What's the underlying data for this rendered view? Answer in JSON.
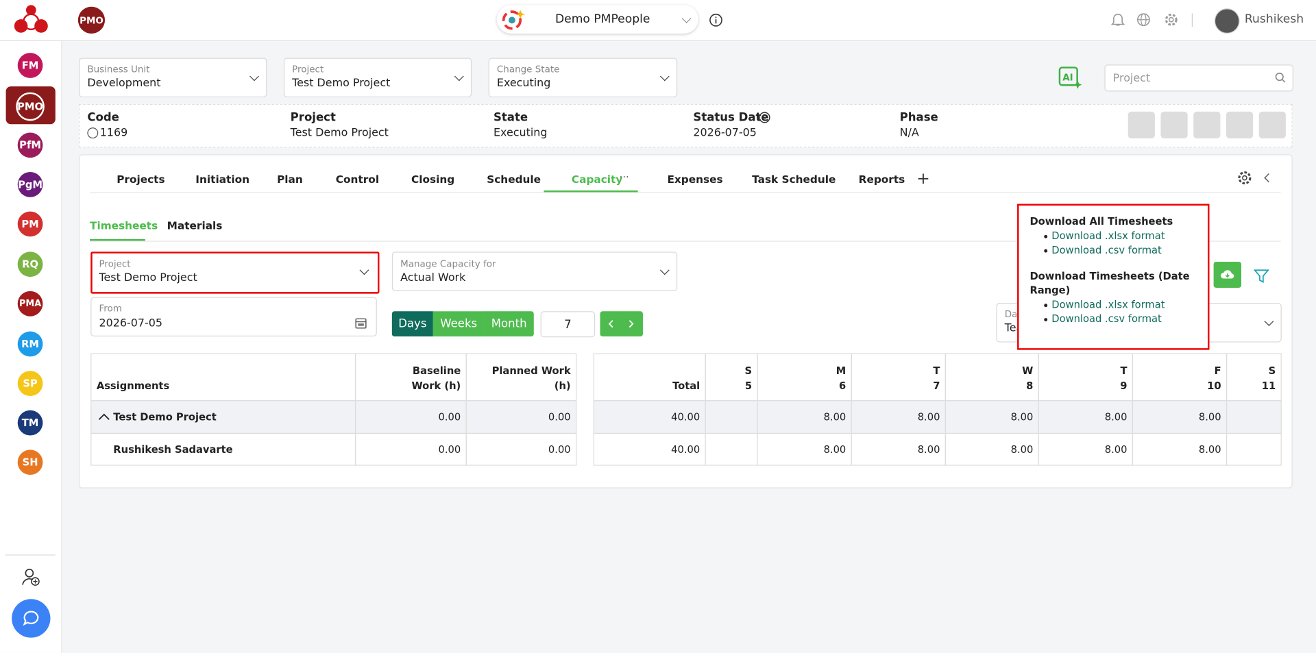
{
  "header": {
    "org_badge": "PMO",
    "workspace": "Demo PMPeople",
    "user": "Rushikesh"
  },
  "sidebar": {
    "items": [
      "FM",
      "PMO",
      "PfM",
      "PgM",
      "PM",
      "RQ",
      "PMA",
      "RM",
      "SP",
      "TM",
      "SH"
    ]
  },
  "filters": {
    "business_unit": {
      "label": "Business Unit",
      "value": "Development"
    },
    "project": {
      "label": "Project",
      "value": "Test Demo Project"
    },
    "change_state": {
      "label": "Change State",
      "value": "Executing"
    },
    "search_placeholder": "Project"
  },
  "summary": {
    "code": {
      "label": "Code",
      "value": "1169"
    },
    "project": {
      "label": "Project",
      "value": "Test Demo Project"
    },
    "state": {
      "label": "State",
      "value": "Executing"
    },
    "status_date": {
      "label": "Status Date",
      "value": "2026-07-05"
    },
    "phase": {
      "label": "Phase",
      "value": "N/A"
    }
  },
  "tabs": [
    "Projects",
    "Initiation",
    "Plan",
    "Control",
    "Closing",
    "Schedule",
    "Capacity",
    "Expenses",
    "Task Schedule",
    "Reports"
  ],
  "subtabs": [
    "Timesheets",
    "Materials"
  ],
  "form": {
    "project": {
      "label": "Project",
      "value": "Test Demo Project"
    },
    "manage_capacity": {
      "label": "Manage Capacity for",
      "value": "Actual Work"
    },
    "from": {
      "label": "From",
      "value": "2026-07-05"
    },
    "periods": [
      "Days",
      "Weeks",
      "Month"
    ],
    "period_count": "7",
    "hidden_dropdown": {
      "label": "Da",
      "value": "Tea"
    }
  },
  "download_menu": {
    "all_title": "Download All Timesheets",
    "all_links": [
      "Download .xlsx format",
      "Download .csv format"
    ],
    "range_title": "Download Timesheets (Date Range)",
    "range_links": [
      "Download .xlsx format",
      "Download .csv format"
    ]
  },
  "table": {
    "headers": [
      "Assignments",
      "Baseline Work (h)",
      "Planned Work (h)"
    ],
    "rows": [
      [
        "Test Demo Project",
        "0.00",
        "0.00"
      ],
      [
        "Rushikesh Sadavarte",
        "0.00",
        "0.00"
      ]
    ],
    "total_header": "Total",
    "days": [
      {
        "weekday": "S",
        "day": "5"
      },
      {
        "weekday": "M",
        "day": "6"
      },
      {
        "weekday": "T",
        "day": "7"
      },
      {
        "weekday": "W",
        "day": "8"
      },
      {
        "weekday": "T",
        "day": "9"
      },
      {
        "weekday": "F",
        "day": "10"
      },
      {
        "weekday": "S",
        "day": "11"
      }
    ],
    "day_rows": [
      {
        "total": "40.00",
        "cells": [
          null,
          "8.00",
          "8.00",
          "8.00",
          "8.00",
          "8.00",
          null
        ]
      },
      {
        "total": "40.00",
        "cells": [
          null,
          "8.00",
          "8.00",
          "8.00",
          "8.00",
          "8.00",
          null
        ]
      }
    ]
  }
}
